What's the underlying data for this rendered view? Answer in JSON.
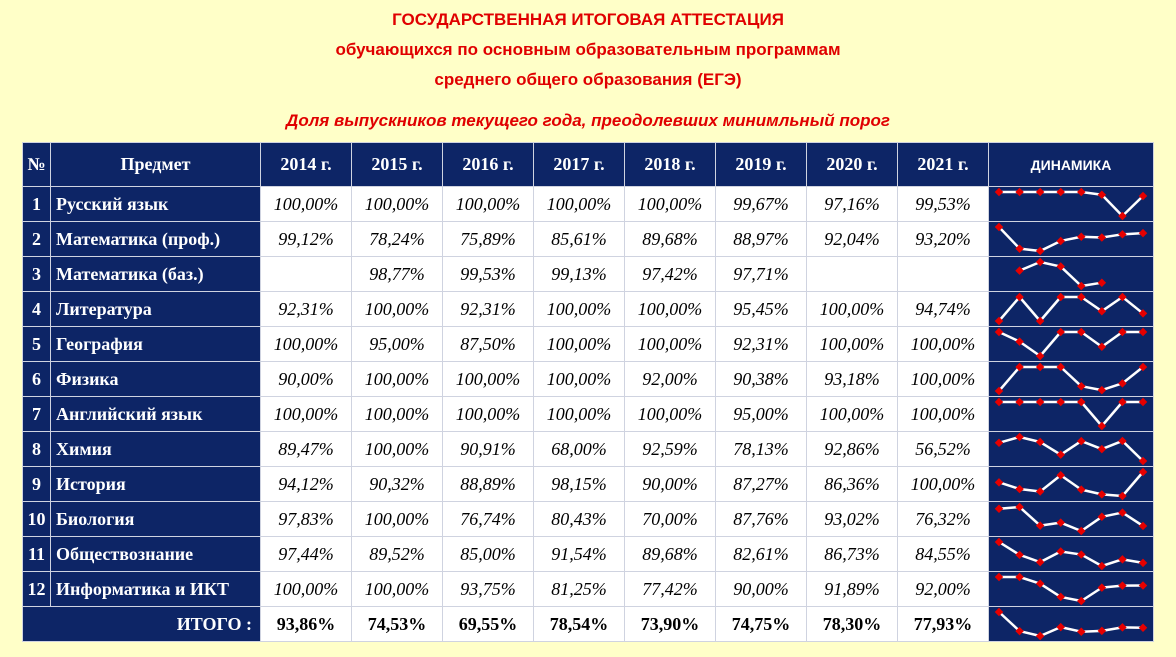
{
  "titles": {
    "line1": "ГОСУДАРСТВЕННАЯ ИТОГОВАЯ АТТЕСТАЦИЯ",
    "line2": "обучающихся по основным образовательным программам",
    "line3": "среднего общего образования (ЕГЭ)",
    "subtitle": "Доля выпускников текущего года, преодолевших минимльный порог"
  },
  "headers": {
    "num": "№",
    "subject": "Предмет",
    "years": [
      "2014 г.",
      "2015 г.",
      "2016 г.",
      "2017 г.",
      "2018 г.",
      "2019 г.",
      "2020 г.",
      "2021 г."
    ],
    "dynamics": "ДИНАМИКА"
  },
  "rows": [
    {
      "num": "1",
      "subject": "Русский язык",
      "cells": [
        "100,00%",
        "100,00%",
        "100,00%",
        "100,00%",
        "100,00%",
        "99,67%",
        "97,16%",
        "99,53%"
      ],
      "series": [
        100,
        100,
        100,
        100,
        100,
        99.67,
        97.16,
        99.53
      ]
    },
    {
      "num": "2",
      "subject": "Математика (проф.)",
      "cells": [
        "99,12%",
        "78,24%",
        "75,89%",
        "85,61%",
        "89,68%",
        "88,97%",
        "92,04%",
        "93,20%"
      ],
      "series": [
        99.12,
        78.24,
        75.89,
        85.61,
        89.68,
        88.97,
        92.04,
        93.2
      ]
    },
    {
      "num": "3",
      "subject": "Математика (баз.)",
      "cells": [
        "",
        "98,77%",
        "99,53%",
        "99,13%",
        "97,42%",
        "97,71%",
        "",
        ""
      ],
      "series": [
        null,
        98.77,
        99.53,
        99.13,
        97.42,
        97.71,
        null,
        null
      ]
    },
    {
      "num": "4",
      "subject": "Литература",
      "cells": [
        "92,31%",
        "100,00%",
        "92,31%",
        "100,00%",
        "100,00%",
        "95,45%",
        "100,00%",
        "94,74%"
      ],
      "series": [
        92.31,
        100,
        92.31,
        100,
        100,
        95.45,
        100,
        94.74
      ]
    },
    {
      "num": "5",
      "subject": "География",
      "cells": [
        "100,00%",
        "95,00%",
        "87,50%",
        "100,00%",
        "100,00%",
        "92,31%",
        "100,00%",
        "100,00%"
      ],
      "series": [
        100,
        95,
        87.5,
        100,
        100,
        92.31,
        100,
        100
      ]
    },
    {
      "num": "6",
      "subject": "Физика",
      "cells": [
        "90,00%",
        "100,00%",
        "100,00%",
        "100,00%",
        "92,00%",
        "90,38%",
        "93,18%",
        "100,00%"
      ],
      "series": [
        90,
        100,
        100,
        100,
        92,
        90.38,
        93.18,
        100
      ]
    },
    {
      "num": "7",
      "subject": "Английский язык",
      "cells": [
        "100,00%",
        "100,00%",
        "100,00%",
        "100,00%",
        "100,00%",
        "95,00%",
        "100,00%",
        "100,00%"
      ],
      "series": [
        100,
        100,
        100,
        100,
        100,
        95,
        100,
        100
      ]
    },
    {
      "num": "8",
      "subject": "Химия",
      "cells": [
        "89,47%",
        "100,00%",
        "90,91%",
        "68,00%",
        "92,59%",
        "78,13%",
        "92,86%",
        "56,52%"
      ],
      "series": [
        89.47,
        100,
        90.91,
        68,
        92.59,
        78.13,
        92.86,
        56.52
      ]
    },
    {
      "num": "9",
      "subject": "История",
      "cells": [
        "94,12%",
        "90,32%",
        "88,89%",
        "98,15%",
        "90,00%",
        "87,27%",
        "86,36%",
        "100,00%"
      ],
      "series": [
        94.12,
        90.32,
        88.89,
        98.15,
        90,
        87.27,
        86.36,
        100
      ]
    },
    {
      "num": "10",
      "subject": "Биология",
      "cells": [
        "97,83%",
        "100,00%",
        "76,74%",
        "80,43%",
        "70,00%",
        "87,76%",
        "93,02%",
        "76,32%"
      ],
      "series": [
        97.83,
        100,
        76.74,
        80.43,
        70,
        87.76,
        93.02,
        76.32
      ]
    },
    {
      "num": "11",
      "subject": "Обществознание",
      "cells": [
        "97,44%",
        "89,52%",
        "85,00%",
        "91,54%",
        "89,68%",
        "82,61%",
        "86,73%",
        "84,55%"
      ],
      "series": [
        97.44,
        89.52,
        85,
        91.54,
        89.68,
        82.61,
        86.73,
        84.55
      ]
    },
    {
      "num": "12",
      "subject": "Информатика и ИКТ",
      "cells": [
        "100,00%",
        "100,00%",
        "93,75%",
        "81,25%",
        "77,42%",
        "90,00%",
        "91,89%",
        "92,00%"
      ],
      "series": [
        100,
        100,
        93.75,
        81.25,
        77.42,
        90,
        91.89,
        92
      ]
    }
  ],
  "total": {
    "label": "ИТОГО :",
    "cells": [
      "93,86%",
      "74,53%",
      "69,55%",
      "78,54%",
      "73,90%",
      "74,75%",
      "78,30%",
      "77,93%"
    ],
    "series": [
      93.86,
      74.53,
      69.55,
      78.54,
      73.9,
      74.75,
      78.3,
      77.93
    ]
  },
  "colors": {
    "background": "#ffffc8",
    "title_red": "#e00000",
    "navy": "#0d2566",
    "sparkline": "#ffffff",
    "marker": "#e60000"
  }
}
